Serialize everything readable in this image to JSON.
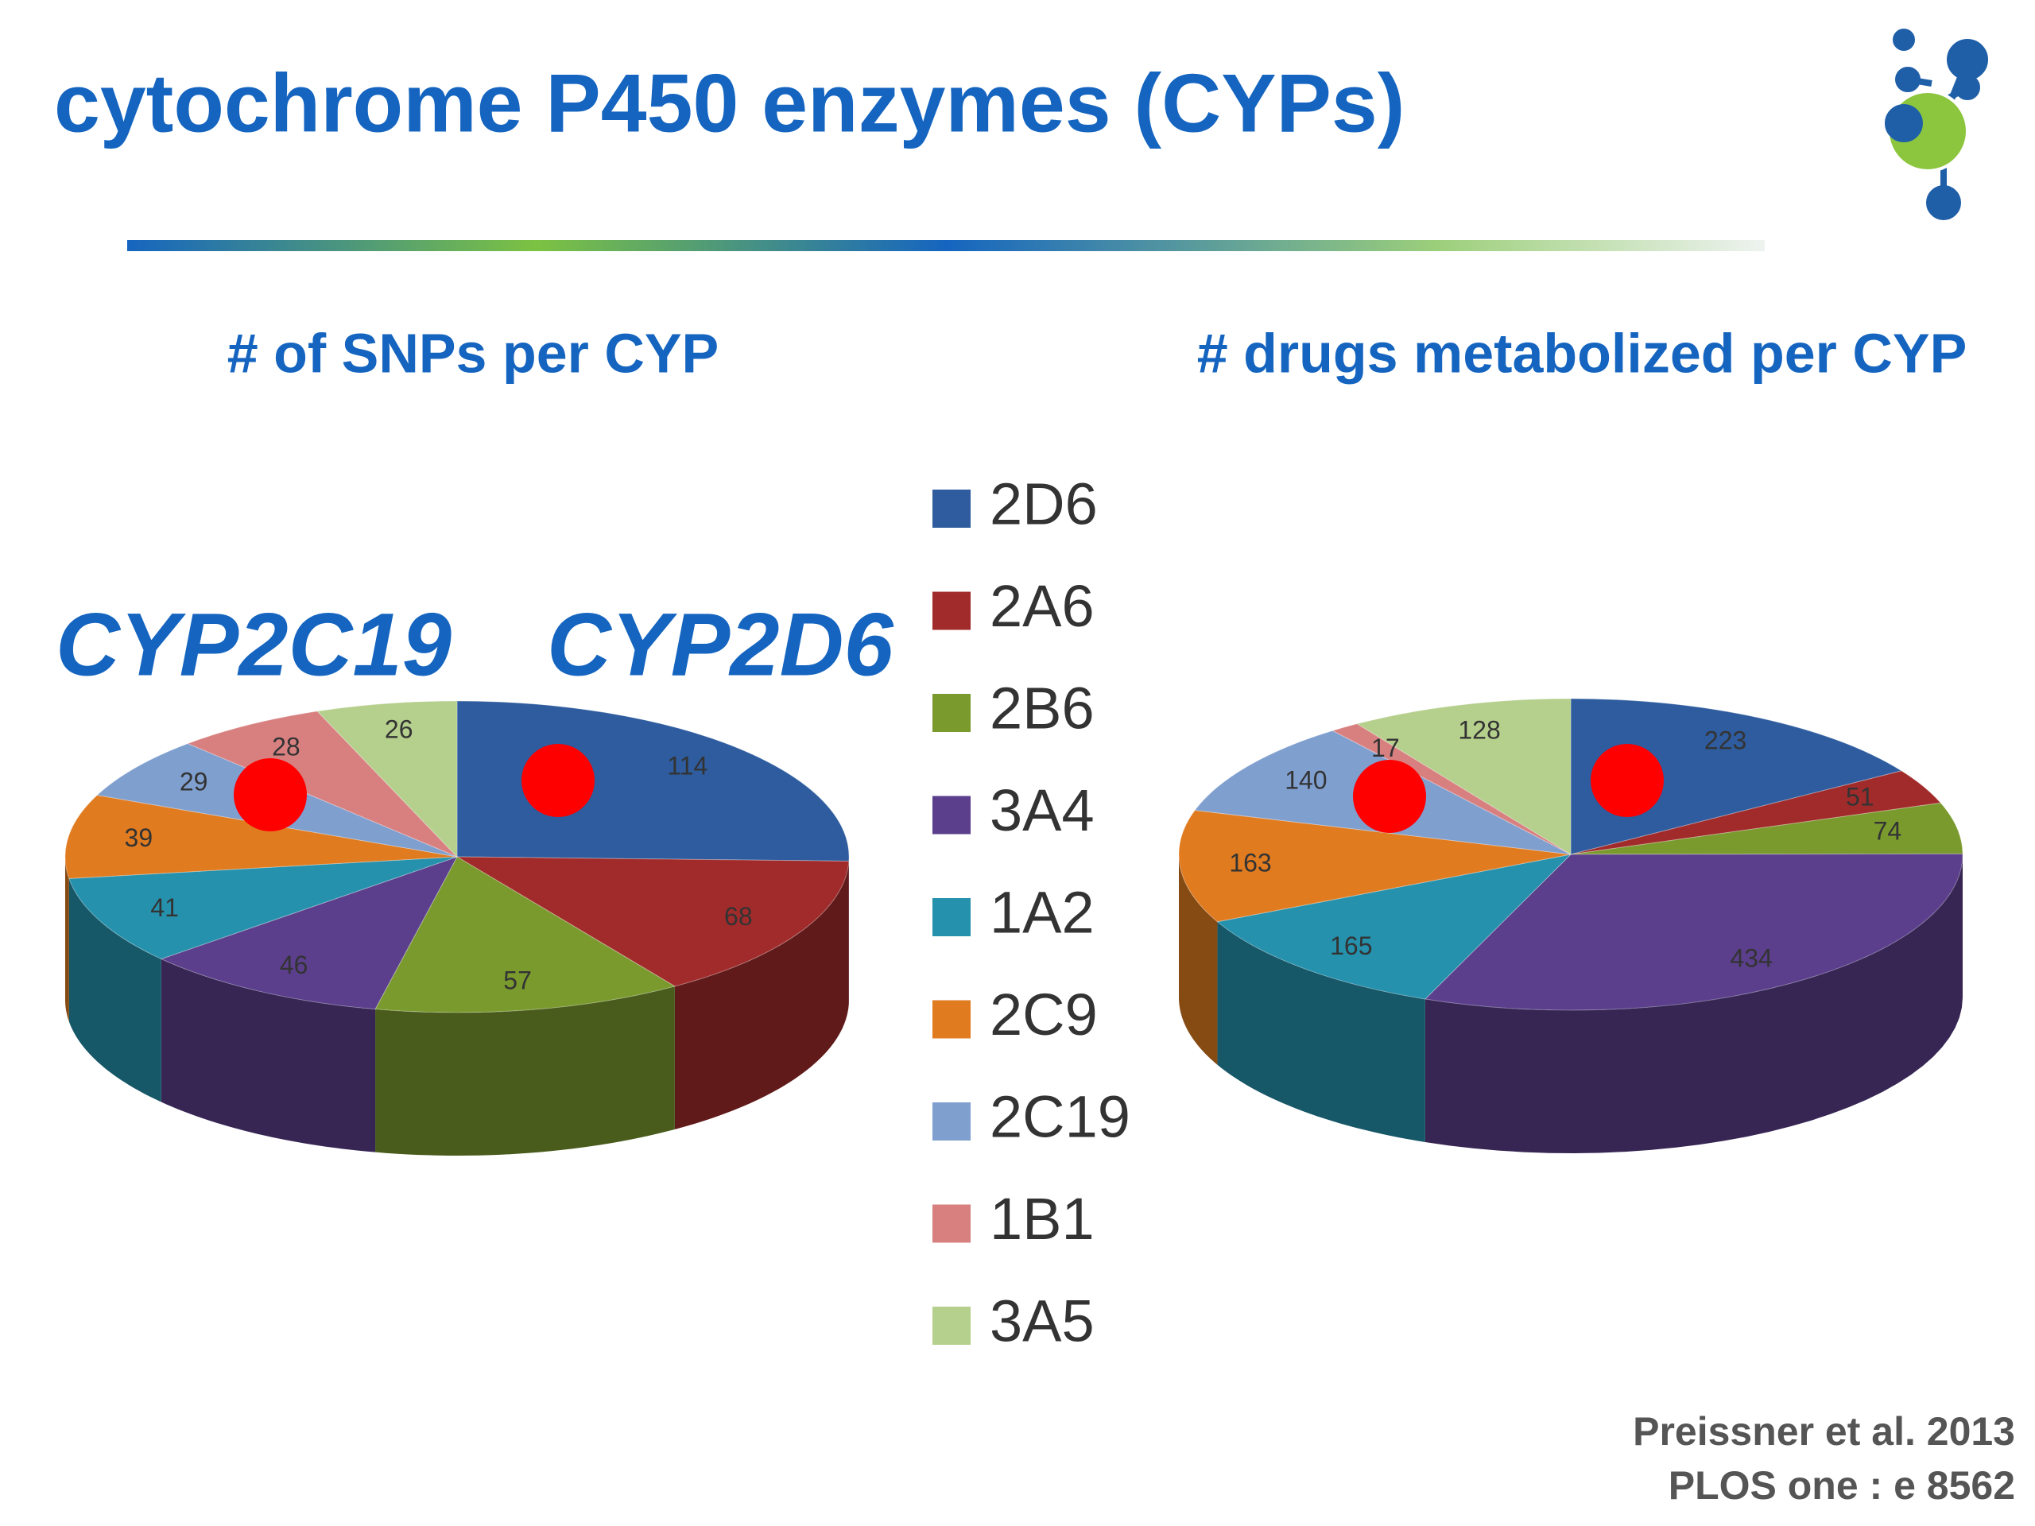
{
  "chart_data": {
    "type": "pie3d",
    "title": "cytochrome P450 enzymes (CYPs)",
    "categories": [
      "2D6",
      "2A6",
      "2B6",
      "3A4",
      "1A2",
      "2C9",
      "2C19",
      "1B1",
      "3A5"
    ],
    "colors": [
      "#2e5c9e",
      "#a12b2b",
      "#7a9a2e",
      "#5b3f8c",
      "#2591ad",
      "#e07b20",
      "#7f9fcf",
      "#d88080",
      "#b5cf8c"
    ],
    "series": [
      {
        "name": "# of SNPs per CYP",
        "values": [
          114,
          68,
          57,
          46,
          41,
          39,
          29,
          28,
          26
        ]
      },
      {
        "name": "# drugs metabolized per CYP",
        "values": [
          223,
          51,
          74,
          434,
          165,
          163,
          140,
          17,
          128
        ]
      }
    ],
    "annotations": [
      "CYP2C19",
      "CYP2D6"
    ],
    "source": [
      "Preissner et al. 2013",
      "PLOS one : e 8562"
    ]
  }
}
